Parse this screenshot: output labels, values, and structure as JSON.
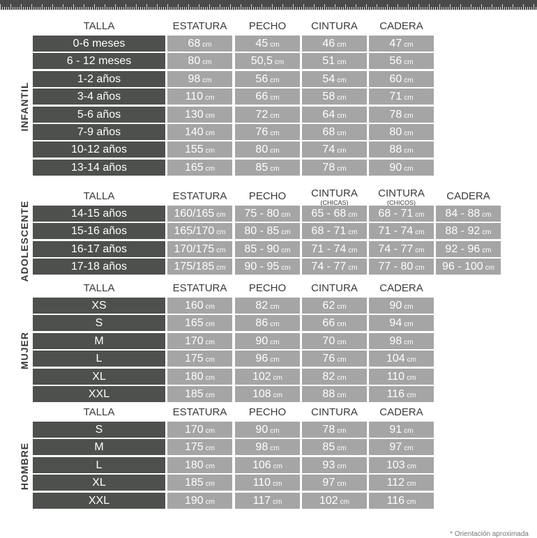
{
  "unit": "cm",
  "sections": [
    {
      "label": "INFANTIL",
      "headers": [
        {
          "t": "TALLA"
        },
        {
          "t": "ESTATURA"
        },
        {
          "t": "PECHO"
        },
        {
          "t": "CINTURA"
        },
        {
          "t": "CADERA"
        }
      ],
      "rows": [
        [
          "0-6 meses",
          "68",
          "45",
          "46",
          "47"
        ],
        [
          "6 - 12 meses",
          "80",
          "50,5",
          "51",
          "56"
        ],
        [
          "1-2 años",
          "98",
          "56",
          "54",
          "60"
        ],
        [
          "3-4 años",
          "110",
          "66",
          "58",
          "71"
        ],
        [
          "5-6 años",
          "130",
          "72",
          "64",
          "78"
        ],
        [
          "7-9 años",
          "140",
          "76",
          "68",
          "80"
        ],
        [
          "10-12 años",
          "155",
          "80",
          "74",
          "88"
        ],
        [
          "13-14 años",
          "165",
          "85",
          "78",
          "90"
        ]
      ]
    },
    {
      "label": "ADOLESCENTE",
      "headers": [
        {
          "t": "TALLA"
        },
        {
          "t": "ESTATURA"
        },
        {
          "t": "PECHO"
        },
        {
          "t": "CINTURA",
          "s": "(CHICAS)"
        },
        {
          "t": "CINTURA",
          "s": "(CHICOS)"
        },
        {
          "t": "CADERA"
        }
      ],
      "rows": [
        [
          "14-15 años",
          "160/165",
          "75 - 80",
          "65 - 68",
          "68 - 71",
          "84 - 88"
        ],
        [
          "15-16 años",
          "165/170",
          "80 - 85",
          "68 - 71",
          "71 - 74",
          "88 - 92"
        ],
        [
          "16-17 años",
          "170/175",
          "85 - 90",
          "71 - 74",
          "74 - 77",
          "92 - 96"
        ],
        [
          "17-18 años",
          "175/185",
          "90 - 95",
          "74 - 77",
          "77 - 80",
          "96 - 100"
        ]
      ]
    },
    {
      "label": "MUJER",
      "headers": [
        {
          "t": "TALLA"
        },
        {
          "t": "ESTATURA"
        },
        {
          "t": "PECHO"
        },
        {
          "t": "CINTURA"
        },
        {
          "t": "CADERA"
        }
      ],
      "rows": [
        [
          "XS",
          "160",
          "82",
          "62",
          "90"
        ],
        [
          "S",
          "165",
          "86",
          "66",
          "94"
        ],
        [
          "M",
          "170",
          "90",
          "70",
          "98"
        ],
        [
          "L",
          "175",
          "96",
          "76",
          "104"
        ],
        [
          "XL",
          "180",
          "102",
          "82",
          "110"
        ],
        [
          "XXL",
          "185",
          "108",
          "88",
          "116"
        ]
      ]
    },
    {
      "label": "HOMBRE",
      "headers": [
        {
          "t": "TALLA"
        },
        {
          "t": "ESTATURA"
        },
        {
          "t": "PECHO"
        },
        {
          "t": "CINTURA"
        },
        {
          "t": "CADERA"
        }
      ],
      "rows": [
        [
          "S",
          "170",
          "90",
          "78",
          "91"
        ],
        [
          "M",
          "175",
          "98",
          "85",
          "97"
        ],
        [
          "L",
          "180",
          "106",
          "93",
          "103"
        ],
        [
          "XL",
          "185",
          "110",
          "97",
          "112"
        ],
        [
          "XXL",
          "190",
          "117",
          "102",
          "116"
        ]
      ]
    }
  ],
  "footnote": "* Orientación aproximada",
  "colors": {
    "dark": "#4d504d",
    "gray": "#a5a5a5"
  }
}
